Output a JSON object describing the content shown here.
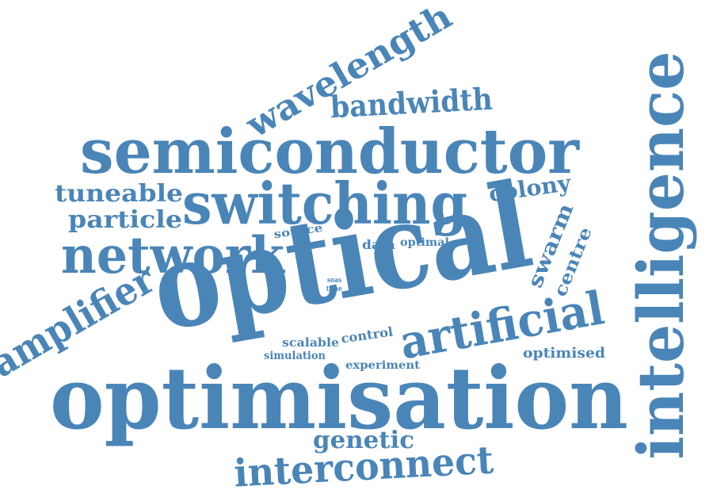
{
  "word_color": "#4a85b8",
  "words": [
    {
      "text": "optimisation"
    },
    {
      "text": "optical"
    },
    {
      "text": "intelligence"
    },
    {
      "text": "semiconductor"
    },
    {
      "text": "switching"
    },
    {
      "text": "network"
    },
    {
      "text": "artificial"
    },
    {
      "text": "interconnect"
    },
    {
      "text": "amplifier"
    },
    {
      "text": "wavelength"
    },
    {
      "text": "bandwidth"
    },
    {
      "text": "tuneable"
    },
    {
      "text": "particle"
    },
    {
      "text": "colony"
    },
    {
      "text": "swarm"
    },
    {
      "text": "centre"
    },
    {
      "text": "genetic"
    },
    {
      "text": "optimised"
    },
    {
      "text": "control"
    },
    {
      "text": "scalable"
    },
    {
      "text": "simulation"
    },
    {
      "text": "experiment"
    },
    {
      "text": "source"
    },
    {
      "text": "data"
    },
    {
      "text": "optimal"
    },
    {
      "text": "soas"
    },
    {
      "text": "time"
    }
  ]
}
